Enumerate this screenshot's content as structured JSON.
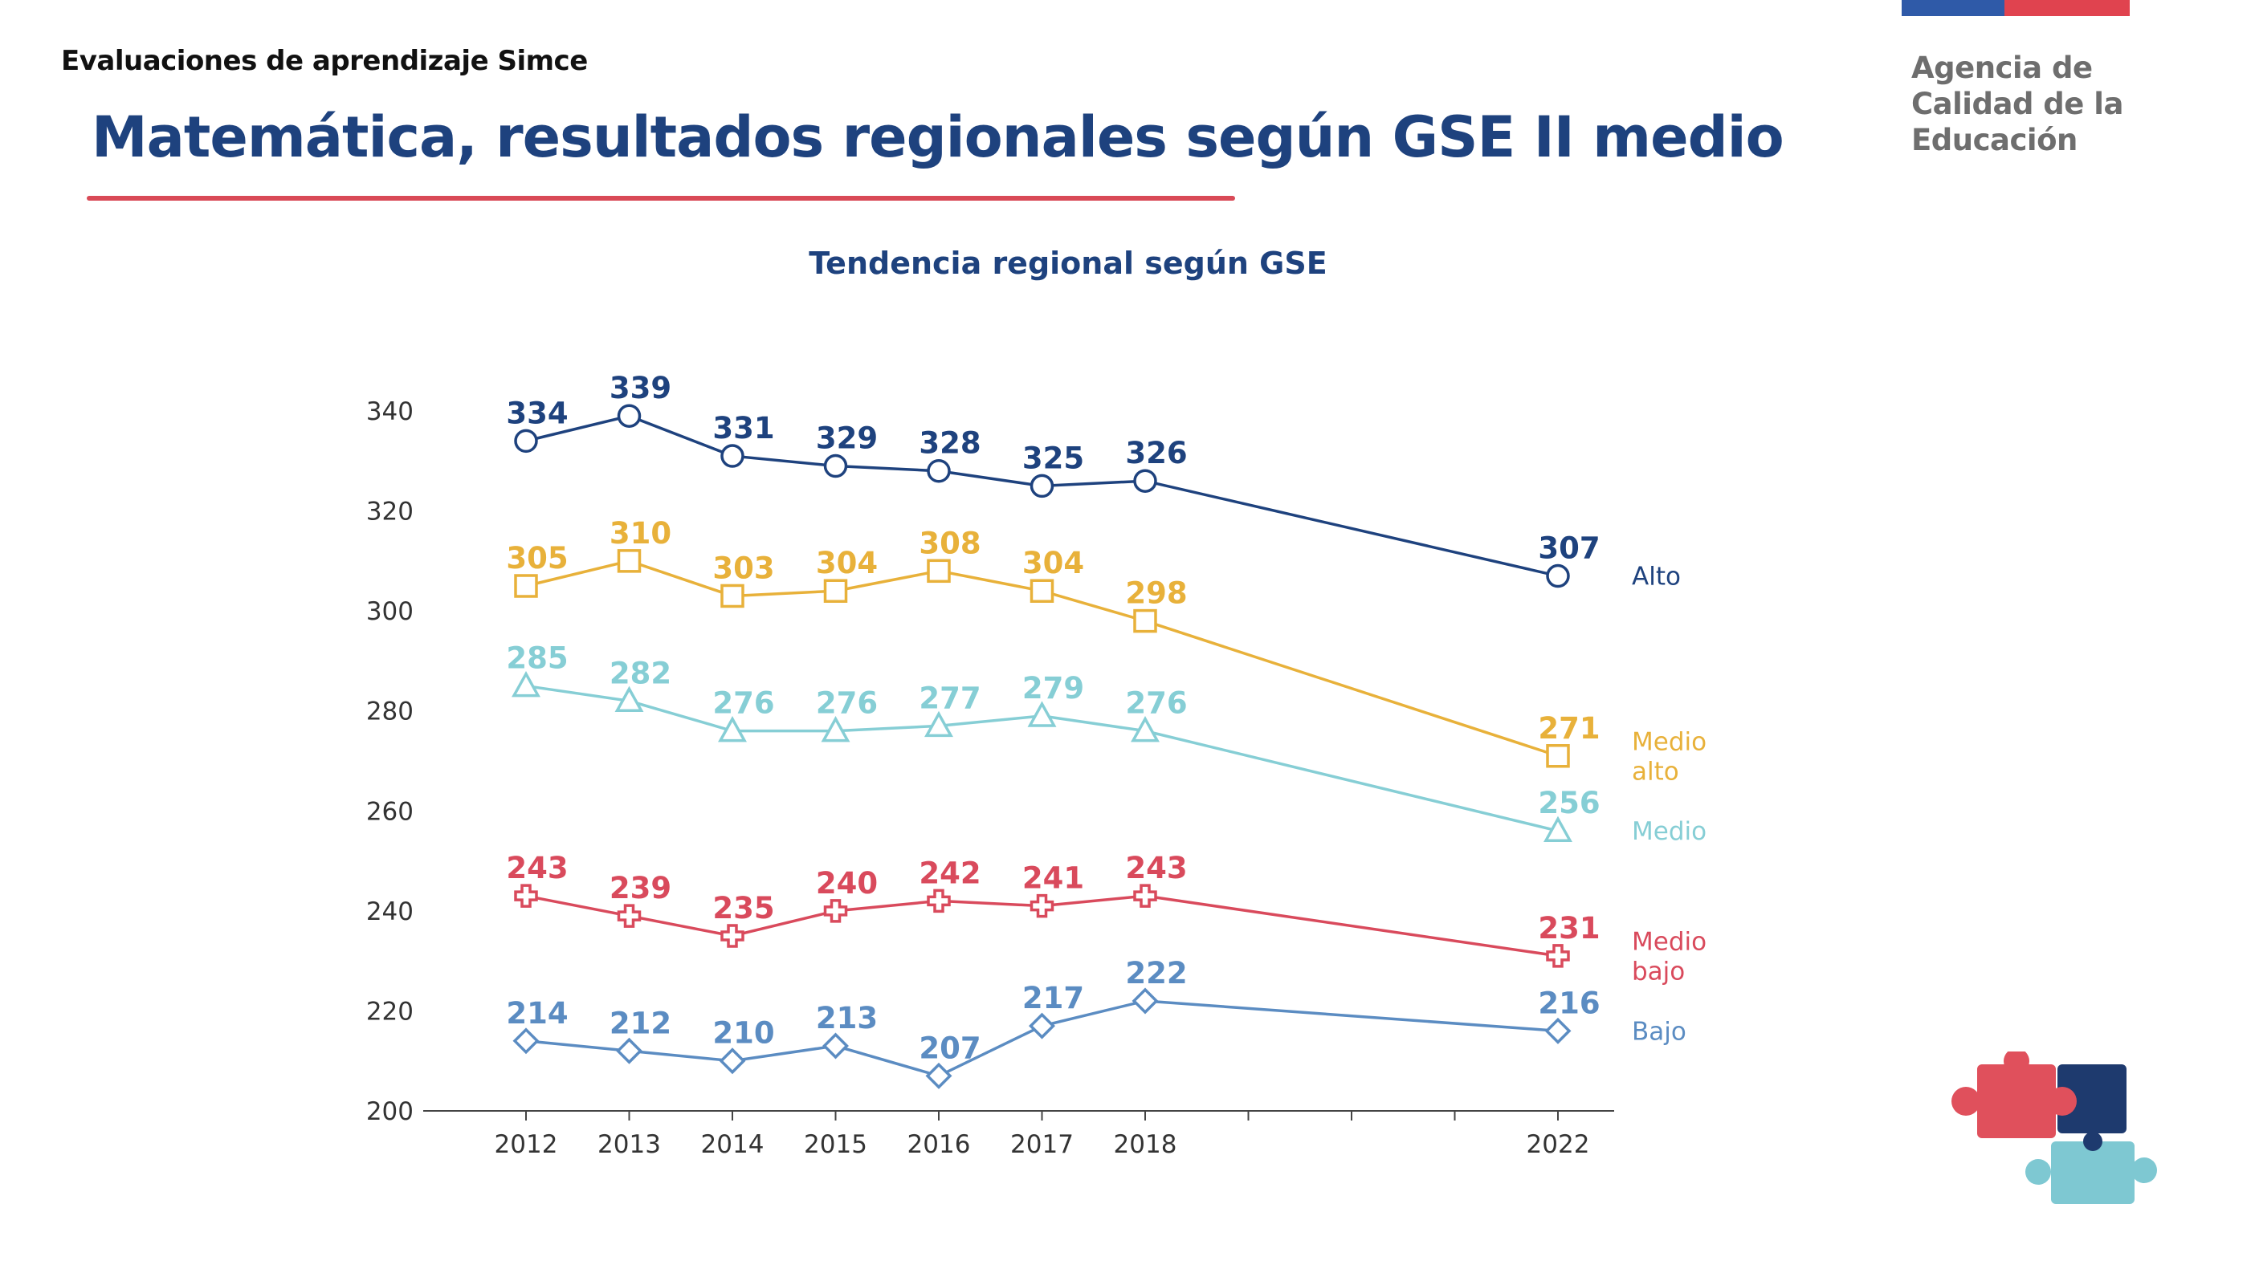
{
  "header": {
    "section_label": "Evaluaciones de aprendizaje Simce",
    "title": "Matemática, resultados regionales según GSE II medio"
  },
  "brand": {
    "agency_lines": [
      "Agencia de",
      "Calidad de la",
      "Educación"
    ],
    "flag_colors": [
      "#2f5aa8",
      "#e0434f"
    ],
    "puzzle_colors": [
      "#e0505c",
      "#1e3a6e",
      "#7ec8d2"
    ]
  },
  "chart_data": {
    "type": "line",
    "title": "Tendencia regional según GSE",
    "xlabel": "",
    "ylabel": "",
    "x": [
      2012,
      2013,
      2014,
      2015,
      2016,
      2017,
      2018,
      2022
    ],
    "x_ticks": [
      2012,
      2013,
      2014,
      2015,
      2016,
      2017,
      2018,
      2019,
      2020,
      2021,
      2022
    ],
    "x_tick_labels": [
      "2012",
      "2013",
      "2014",
      "2015",
      "2016",
      "2017",
      "2018",
      "",
      "",
      "",
      "2022"
    ],
    "ylim": [
      200,
      345
    ],
    "y_ticks": [
      200,
      220,
      240,
      260,
      280,
      300,
      320,
      340
    ],
    "grid": false,
    "legend": "right, at line ends",
    "series": [
      {
        "name": "Alto",
        "label_lines": [
          "Alto"
        ],
        "color": "#1e427e",
        "marker": "circle",
        "values": [
          334,
          339,
          331,
          329,
          328,
          325,
          326,
          307
        ]
      },
      {
        "name": "Medio alto",
        "label_lines": [
          "Medio",
          "alto"
        ],
        "color": "#e8b13a",
        "marker": "square",
        "values": [
          305,
          310,
          303,
          304,
          308,
          304,
          298,
          271
        ]
      },
      {
        "name": "Medio",
        "label_lines": [
          "Medio"
        ],
        "color": "#86ced5",
        "marker": "triangle",
        "values": [
          285,
          282,
          276,
          276,
          277,
          279,
          276,
          256
        ]
      },
      {
        "name": "Medio bajo",
        "label_lines": [
          "Medio",
          "bajo"
        ],
        "color": "#d94a5c",
        "marker": "cross",
        "values": [
          243,
          239,
          235,
          240,
          242,
          241,
          243,
          231
        ]
      },
      {
        "name": "Bajo",
        "label_lines": [
          "Bajo"
        ],
        "color": "#5b8cc2",
        "marker": "diamond",
        "values": [
          214,
          212,
          210,
          213,
          207,
          217,
          222,
          216
        ]
      }
    ]
  }
}
